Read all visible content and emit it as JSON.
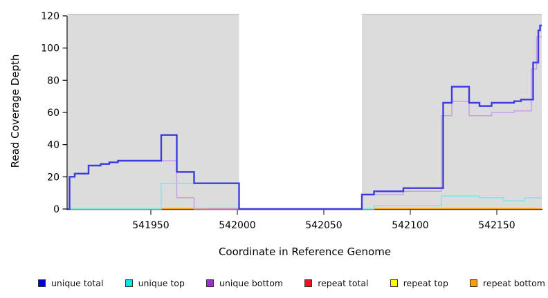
{
  "chart_data": {
    "type": "line",
    "subtype": "step-coverage",
    "title": "",
    "xlabel": "Coordinate in Reference Genome",
    "ylabel": "Read Coverage Depth",
    "xlim": [
      541902,
      542176
    ],
    "ylim": [
      0,
      120
    ],
    "xticks": [
      541950,
      542000,
      542050,
      542100,
      542150
    ],
    "yticks": [
      0,
      20,
      40,
      60,
      80,
      100,
      120
    ],
    "grid": false,
    "legend_position": "bottom",
    "plot_background": "#ffffff",
    "shaded_regions": [
      {
        "name": "left-aligned-block",
        "x0": 541902,
        "x1": 542001,
        "color": "#dcdcdc"
      },
      {
        "name": "right-aligned-block",
        "x0": 542072,
        "x1": 542176,
        "color": "#dcdcdc"
      }
    ],
    "baseline_segments": [
      {
        "x0": 541902,
        "x1": 541956,
        "color": "#a6dca6"
      },
      {
        "x0": 541956,
        "x1": 541983,
        "color": "#ff9e00"
      },
      {
        "x0": 541983,
        "x1": 542001,
        "color": "#dd6075"
      },
      {
        "x0": 542072,
        "x1": 542079,
        "color": "#9fdcc0"
      },
      {
        "x0": 542079,
        "x1": 542176,
        "color": "#ff9e00"
      }
    ],
    "series": [
      {
        "name": "unique total",
        "color": "#3b3bdf",
        "width": 2.4,
        "steps": [
          [
            541902,
            0
          ],
          [
            541903,
            20
          ],
          [
            541906,
            22
          ],
          [
            541914,
            27
          ],
          [
            541921,
            28
          ],
          [
            541926,
            29
          ],
          [
            541931,
            30
          ],
          [
            541956,
            46
          ],
          [
            541965,
            23
          ],
          [
            541975,
            16
          ],
          [
            542001,
            0
          ],
          [
            542072,
            9
          ],
          [
            542079,
            11
          ],
          [
            542096,
            13
          ],
          [
            542119,
            66
          ],
          [
            542124,
            76
          ],
          [
            542134,
            66
          ],
          [
            542140,
            64
          ],
          [
            542147,
            66
          ],
          [
            542160,
            67
          ],
          [
            542164,
            68
          ],
          [
            542171,
            91
          ],
          [
            542174,
            111
          ],
          [
            542175,
            114
          ],
          [
            542176,
            114
          ]
        ]
      },
      {
        "name": "unique top",
        "color": "#79e6ee",
        "width": 1.5,
        "steps": [
          [
            541902,
            0
          ],
          [
            541956,
            16
          ],
          [
            542001,
            0
          ],
          [
            542079,
            2
          ],
          [
            542118,
            8
          ],
          [
            542140,
            7
          ],
          [
            542154,
            5
          ],
          [
            542166,
            7
          ],
          [
            542176,
            7
          ]
        ]
      },
      {
        "name": "unique bottom",
        "color": "#c59fe5",
        "width": 1.5,
        "steps": [
          [
            541902,
            0
          ],
          [
            541903,
            20
          ],
          [
            541906,
            22
          ],
          [
            541914,
            27
          ],
          [
            541921,
            28
          ],
          [
            541926,
            29
          ],
          [
            541931,
            30
          ],
          [
            541965,
            7
          ],
          [
            541975,
            0
          ],
          [
            542072,
            9
          ],
          [
            542096,
            11
          ],
          [
            542118,
            58
          ],
          [
            542124,
            67
          ],
          [
            542134,
            58
          ],
          [
            542147,
            60
          ],
          [
            542160,
            61
          ],
          [
            542170,
            87
          ],
          [
            542173,
            107
          ],
          [
            542176,
            107
          ]
        ]
      },
      {
        "name": "repeat total",
        "color": "#dd6075",
        "width": 1.5,
        "draw": false,
        "steps": [
          [
            541902,
            0
          ],
          [
            542176,
            0
          ]
        ]
      },
      {
        "name": "repeat top",
        "color": "#ffff00",
        "width": 1.5,
        "draw": false,
        "steps": [
          [
            541902,
            0
          ],
          [
            542176,
            0
          ]
        ]
      },
      {
        "name": "repeat bottom",
        "color": "#ff9e00",
        "width": 1.5,
        "draw": false,
        "steps": [
          [
            541902,
            0
          ],
          [
            542176,
            0
          ]
        ]
      }
    ],
    "legend": [
      {
        "label": "unique total",
        "color": "#0000e0"
      },
      {
        "label": "unique top",
        "color": "#00e5f2"
      },
      {
        "label": "unique bottom",
        "color": "#9932cc"
      },
      {
        "label": "repeat total",
        "color": "#ee1122"
      },
      {
        "label": "repeat top",
        "color": "#ffff00"
      },
      {
        "label": "repeat bottom",
        "color": "#ff9e00"
      }
    ]
  }
}
